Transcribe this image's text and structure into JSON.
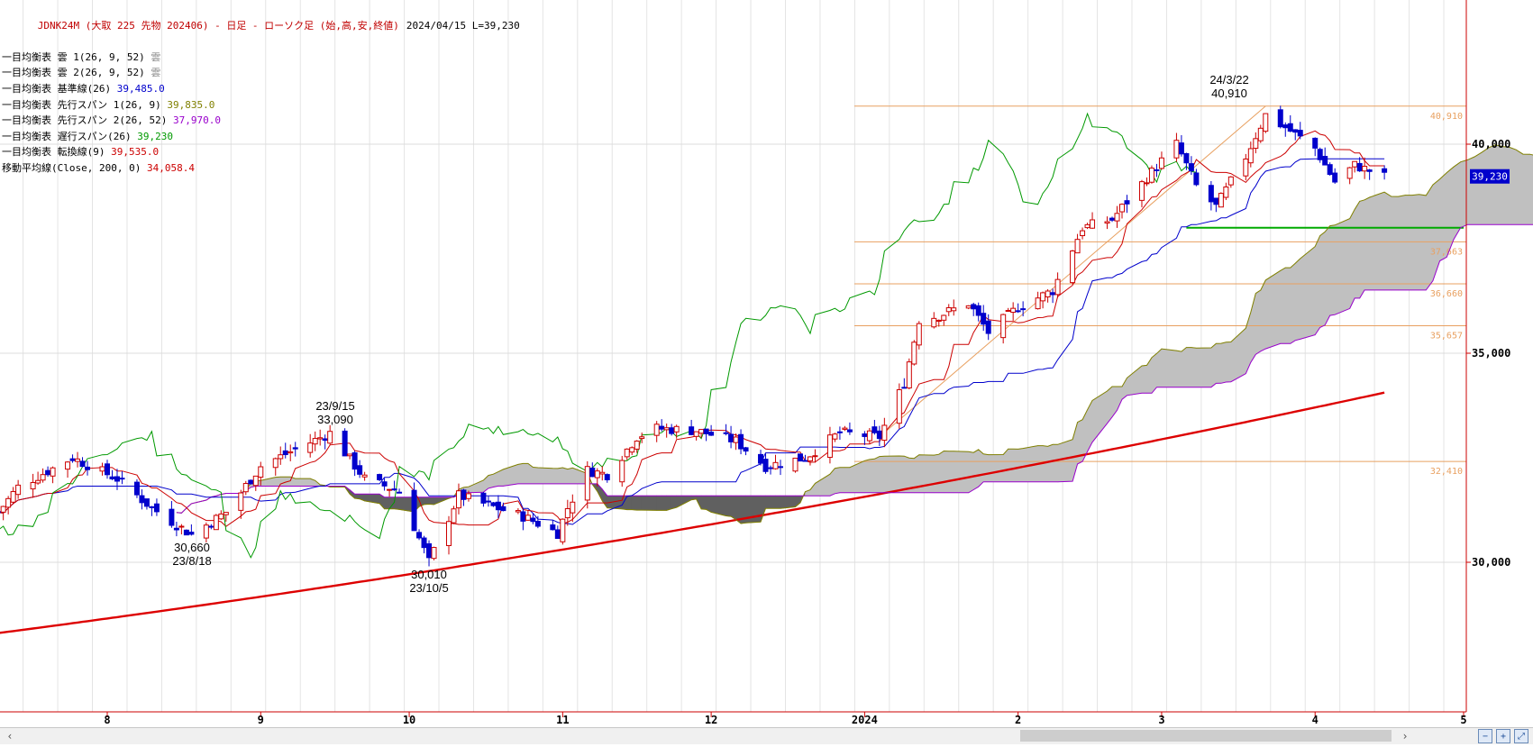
{
  "header": {
    "title": "JDNK24M (大取 225 先物 202406) - 日足 - ローソク足 (始,高,安,終値)",
    "info": "2024/04/15 L=39,230"
  },
  "legend": [
    {
      "label": "一目均衡表 雲 1(26, 9, 52)",
      "value": "雲",
      "color": "#888888"
    },
    {
      "label": "一目均衡表 雲 2(26, 9, 52)",
      "value": "雲",
      "color": "#888888"
    },
    {
      "label": "一目均衡表 基準線(26)",
      "value": "39,485.0",
      "color": "#0000cc"
    },
    {
      "label": "一目均衡表 先行スパン 1(26, 9)",
      "value": "39,835.0",
      "color": "#808000"
    },
    {
      "label": "一目均衡表 先行スパン 2(26, 52)",
      "value": "37,970.0",
      "color": "#9900cc"
    },
    {
      "label": "一目均衡表 遅行スパン(26)",
      "value": "39,230",
      "color": "#009900"
    },
    {
      "label": "一目均衡表 転換線(9)",
      "value": "39,535.0",
      "color": "#cc0000"
    },
    {
      "label": "移動平均線(Close, 200, 0)",
      "value": "34,058.4",
      "color": "#cc0000"
    }
  ],
  "annotations": {
    "low1": {
      "value": "30,660",
      "date": "23/8/18"
    },
    "high1": {
      "date": "23/9/15",
      "value": "33,090"
    },
    "low2": {
      "value": "30,010",
      "date": "23/10/5"
    },
    "high2": {
      "date": "24/3/22",
      "value": "40,910"
    }
  },
  "colors": {
    "up": "#cc0000",
    "down": "#0000cc",
    "tenkan": "#cc0000",
    "kijun": "#0000cc",
    "chikou": "#009900",
    "senkou_a": "#808000",
    "senkou_b": "#9900cc",
    "cloud": "#c0c0c0",
    "cloud_twist": "#606060",
    "ma200": "#dd0000",
    "fib": "#e8a060",
    "support": "#00aa00",
    "axis": "#cc0000"
  },
  "chart_data": {
    "type": "candlestick",
    "symbol": "JDNK24M",
    "y_ticks": [
      {
        "value": 30000,
        "label": "30,000"
      },
      {
        "value": 35000,
        "label": "35,000"
      },
      {
        "value": 40000,
        "label": "40,000"
      }
    ],
    "x_ticks": [
      {
        "date": "2023-08-01",
        "label": "8"
      },
      {
        "date": "2023-09-01",
        "label": "9"
      },
      {
        "date": "2023-10-01",
        "label": "10"
      },
      {
        "date": "2023-11-01",
        "label": "11"
      },
      {
        "date": "2023-12-01",
        "label": "12"
      },
      {
        "date": "2024-01-01",
        "label": "2024"
      },
      {
        "date": "2024-02-01",
        "label": "2"
      },
      {
        "date": "2024-03-01",
        "label": "3"
      },
      {
        "date": "2024-04-01",
        "label": "4"
      },
      {
        "date": "2024-05-01",
        "label": "5"
      }
    ],
    "last_price": {
      "value": 39230,
      "label": "39,230"
    },
    "fib_levels": [
      {
        "value": 40910,
        "label": "40,910"
      },
      {
        "value": 37663,
        "label": "37,663"
      },
      {
        "value": 36660,
        "label": "36,660"
      },
      {
        "value": 35657,
        "label": "35,657"
      },
      {
        "value": 32410,
        "label": "32,410"
      }
    ],
    "support_line": {
      "value": 38000,
      "from": "2024-03-06",
      "to": "2024-05-01"
    },
    "anchors": [
      {
        "date": "2023-07-10",
        "close": 31200
      },
      {
        "date": "2023-07-14",
        "close": 31800
      },
      {
        "date": "2023-07-25",
        "close": 32500
      },
      {
        "date": "2023-08-03",
        "close": 32000
      },
      {
        "date": "2023-08-10",
        "close": 31300
      },
      {
        "date": "2023-08-18",
        "close": 30660
      },
      {
        "date": "2023-08-25",
        "close": 31200
      },
      {
        "date": "2023-09-01",
        "close": 32300
      },
      {
        "date": "2023-09-08",
        "close": 32700
      },
      {
        "date": "2023-09-15",
        "close": 33090
      },
      {
        "date": "2023-09-22",
        "close": 32000
      },
      {
        "date": "2023-09-29",
        "close": 31700
      },
      {
        "date": "2023-10-05",
        "close": 30010
      },
      {
        "date": "2023-10-11",
        "close": 31600
      },
      {
        "date": "2023-10-16",
        "close": 31400
      },
      {
        "date": "2023-10-24",
        "close": 31100
      },
      {
        "date": "2023-10-31",
        "close": 30700
      },
      {
        "date": "2023-11-02",
        "close": 31300
      },
      {
        "date": "2023-11-06",
        "close": 32200
      },
      {
        "date": "2023-11-10",
        "close": 32100
      },
      {
        "date": "2023-11-16",
        "close": 33000
      },
      {
        "date": "2023-11-20",
        "close": 33200
      },
      {
        "date": "2023-11-28",
        "close": 33150
      },
      {
        "date": "2023-12-06",
        "close": 32900
      },
      {
        "date": "2023-12-12",
        "close": 32300
      },
      {
        "date": "2023-12-20",
        "close": 32500
      },
      {
        "date": "2023-12-27",
        "close": 33100
      },
      {
        "date": "2024-01-04",
        "close": 33000
      },
      {
        "date": "2024-01-09",
        "close": 34300
      },
      {
        "date": "2024-01-12",
        "close": 35800
      },
      {
        "date": "2024-01-16",
        "close": 35900
      },
      {
        "date": "2024-01-22",
        "close": 36200
      },
      {
        "date": "2024-01-26",
        "close": 35500
      },
      {
        "date": "2024-02-01",
        "close": 36100
      },
      {
        "date": "2024-02-08",
        "close": 36500
      },
      {
        "date": "2024-02-14",
        "close": 38000
      },
      {
        "date": "2024-02-20",
        "close": 38200
      },
      {
        "date": "2024-02-27",
        "close": 39200
      },
      {
        "date": "2024-03-04",
        "close": 40000
      },
      {
        "date": "2024-03-08",
        "close": 39000
      },
      {
        "date": "2024-03-12",
        "close": 38500
      },
      {
        "date": "2024-03-18",
        "close": 39700
      },
      {
        "date": "2024-03-22",
        "close": 40700
      },
      {
        "date": "2024-03-26",
        "close": 40400
      },
      {
        "date": "2024-04-01",
        "close": 39900
      },
      {
        "date": "2024-04-05",
        "close": 39100
      },
      {
        "date": "2024-04-09",
        "close": 39500
      },
      {
        "date": "2024-04-15",
        "close": 39230
      }
    ]
  }
}
